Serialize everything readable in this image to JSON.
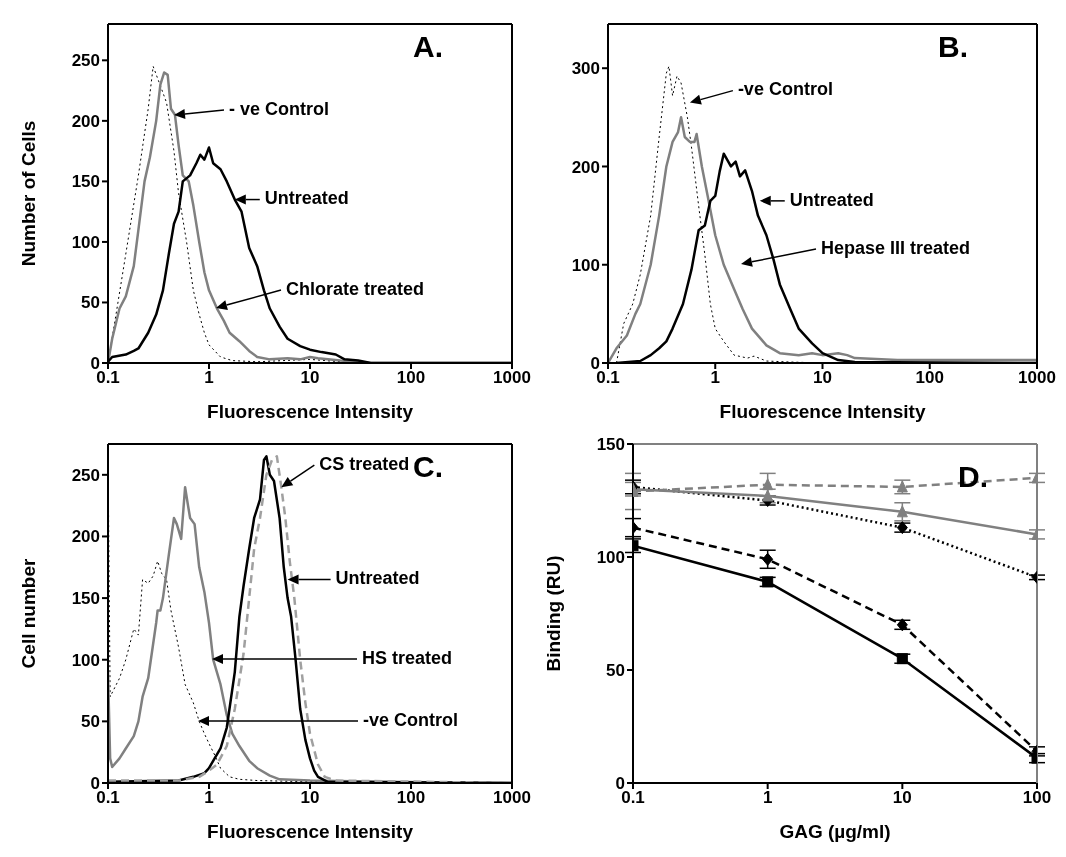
{
  "chart_data": [
    {
      "type": "line",
      "xlabel": "Fluorescence Intensity",
      "ylabel": "Number of Cells",
      "log": "x",
      "xlim": [
        0.1,
        1000
      ],
      "xticks": [
        0.1,
        1,
        10,
        100,
        1000
      ],
      "ylim": [
        0,
        280
      ],
      "yticks": [
        0,
        50,
        100,
        150,
        200,
        250
      ],
      "series": [
        {
          "color": "#000000",
          "line_style": "dotted",
          "x": [
            0.1,
            0.12,
            0.15,
            0.2,
            0.25,
            0.28,
            0.32,
            0.38,
            0.45,
            0.5,
            0.6,
            0.7,
            0.8,
            0.9,
            1.0,
            1.3,
            1.7,
            3,
            10,
            20,
            40,
            1000
          ],
          "values": [
            0,
            40,
            90,
            155,
            210,
            245,
            232,
            215,
            175,
            140,
            100,
            60,
            40,
            25,
            15,
            5,
            2,
            1,
            3,
            1,
            0,
            0
          ]
        },
        {
          "color": "#808080",
          "line_style": "solid",
          "x": [
            0.1,
            0.11,
            0.13,
            0.15,
            0.18,
            0.2,
            0.23,
            0.26,
            0.3,
            0.33,
            0.36,
            0.39,
            0.42,
            0.46,
            0.5,
            0.55,
            0.63,
            0.7,
            0.8,
            0.9,
            1.0,
            1.2,
            1.4,
            1.6,
            2,
            2.5,
            3,
            4,
            6,
            8,
            10,
            12,
            20,
            40,
            1000
          ],
          "values": [
            0,
            20,
            45,
            55,
            80,
            110,
            150,
            170,
            200,
            230,
            240,
            238,
            210,
            205,
            180,
            155,
            150,
            130,
            100,
            75,
            60,
            45,
            35,
            25,
            18,
            10,
            5,
            3,
            4,
            3,
            5,
            4,
            2,
            0,
            0
          ]
        },
        {
          "color": "#000000",
          "line_style": "solid",
          "x": [
            0.1,
            0.11,
            0.15,
            0.18,
            0.2,
            0.25,
            0.3,
            0.35,
            0.4,
            0.45,
            0.5,
            0.55,
            0.65,
            0.75,
            0.82,
            0.9,
            1.0,
            1.1,
            1.3,
            1.5,
            1.8,
            2.1,
            2.5,
            3.0,
            3.5,
            4,
            5,
            6,
            8,
            10,
            13,
            18,
            22,
            30,
            40,
            1000
          ],
          "values": [
            1,
            5,
            7,
            10,
            12,
            25,
            40,
            60,
            90,
            115,
            125,
            150,
            155,
            165,
            172,
            168,
            178,
            165,
            160,
            150,
            135,
            125,
            95,
            80,
            60,
            45,
            30,
            20,
            14,
            11,
            9,
            7,
            3,
            2,
            0,
            0
          ]
        }
      ],
      "annotations": [
        "- ve Control",
        {
          "text": "Untreated",
          "x": 1.8,
          "y": 135
        },
        "Chlorate treated",
        "A."
      ]
    },
    {
      "type": "line",
      "xlabel": "Fluorescence Intensity",
      "log": "x",
      "xlim": [
        0.1,
        1000
      ],
      "xticks": [
        0.1,
        1,
        10,
        100,
        1000
      ],
      "ylim": [
        0,
        345
      ],
      "yticks": [
        0,
        100,
        200,
        300
      ],
      "series": [
        {
          "color": "#000000",
          "line_style": "dotted",
          "x": [
            0.12,
            0.14,
            0.17,
            0.2,
            0.25,
            0.3,
            0.35,
            0.37,
            0.4,
            0.44,
            0.48,
            0.55,
            0.6,
            0.7,
            0.8,
            0.9,
            1.0,
            1.2,
            1.5,
            2,
            2.3,
            3,
            5,
            10,
            1000
          ],
          "values": [
            0,
            40,
            60,
            90,
            150,
            230,
            295,
            302,
            272,
            292,
            285,
            250,
            220,
            160,
            110,
            60,
            35,
            22,
            8,
            5,
            7,
            2,
            1,
            0,
            0
          ]
        },
        {
          "color": "#808080",
          "line_style": "solid",
          "x": [
            0.1,
            0.12,
            0.15,
            0.18,
            0.2,
            0.25,
            0.3,
            0.35,
            0.4,
            0.45,
            0.48,
            0.52,
            0.58,
            0.64,
            0.67,
            0.75,
            0.85,
            1.0,
            1.2,
            1.5,
            1.8,
            2.2,
            3,
            4,
            6,
            8,
            10,
            14,
            17,
            20,
            50,
            1000
          ],
          "values": [
            0,
            15,
            28,
            50,
            60,
            100,
            150,
            200,
            225,
            235,
            250,
            230,
            225,
            225,
            233,
            200,
            170,
            130,
            100,
            75,
            55,
            35,
            18,
            10,
            8,
            10,
            8,
            10,
            8,
            5,
            3,
            3
          ]
        },
        {
          "color": "#000000",
          "line_style": "solid",
          "x": [
            0.12,
            0.2,
            0.25,
            0.3,
            0.35,
            0.4,
            0.5,
            0.6,
            0.7,
            0.8,
            0.9,
            1.0,
            1.1,
            1.2,
            1.4,
            1.55,
            1.7,
            1.9,
            2.2,
            2.5,
            3,
            3.5,
            4,
            5,
            6,
            8,
            10,
            14,
            20,
            1000
          ],
          "values": [
            0,
            2,
            8,
            15,
            22,
            35,
            60,
            95,
            135,
            140,
            165,
            170,
            195,
            213,
            200,
            205,
            190,
            196,
            175,
            150,
            130,
            105,
            80,
            55,
            35,
            20,
            10,
            3,
            1,
            0
          ]
        }
      ],
      "annotations": [
        {
          "text": "-ve Control",
          "x": 0.58,
          "y": 265
        },
        {
          "text": "Untreated",
          "x": 2.6,
          "y": 165
        },
        "Hepase III treated",
        "B."
      ]
    },
    {
      "type": "line",
      "xlabel": "Fluorescence Intensity",
      "ylabel": "Cell number",
      "log": "x",
      "xlim": [
        0.1,
        1000
      ],
      "xticks": [
        0.1,
        1,
        10,
        100,
        1000
      ],
      "ylim": [
        0,
        275
      ],
      "yticks": [
        0,
        50,
        100,
        150,
        200,
        250
      ],
      "series": [
        {
          "color": "#000000",
          "line_style": "dotted",
          "x": [
            0.1,
            0.105,
            0.13,
            0.15,
            0.18,
            0.2,
            0.22,
            0.25,
            0.28,
            0.31,
            0.34,
            0.38,
            0.42,
            0.5,
            0.58,
            0.7,
            0.8,
            0.9,
            1.0,
            1.15,
            1.3,
            1.6,
            2,
            3,
            10,
            1000
          ],
          "values": [
            270,
            70,
            85,
            100,
            125,
            120,
            165,
            162,
            168,
            180,
            170,
            165,
            140,
            110,
            80,
            65,
            50,
            40,
            32,
            22,
            12,
            5,
            3,
            2,
            1,
            0
          ]
        },
        {
          "color": "#808080",
          "line_style": "solid",
          "x": [
            0.1,
            0.105,
            0.11,
            0.13,
            0.15,
            0.18,
            0.2,
            0.22,
            0.25,
            0.3,
            0.31,
            0.33,
            0.35,
            0.4,
            0.45,
            0.48,
            0.53,
            0.58,
            0.62,
            0.65,
            0.72,
            0.8,
            0.9,
            1.0,
            1.1,
            1.3,
            1.5,
            1.7,
            2,
            2.5,
            3,
            4,
            5,
            10,
            50,
            1000
          ],
          "values": [
            90,
            20,
            13,
            20,
            28,
            38,
            50,
            70,
            85,
            130,
            140,
            140,
            150,
            185,
            215,
            210,
            198,
            240,
            225,
            215,
            210,
            175,
            155,
            130,
            100,
            80,
            55,
            40,
            30,
            18,
            12,
            6,
            3,
            2,
            1,
            0
          ]
        },
        {
          "color": "#000000",
          "line_style": "solid",
          "x": [
            0.1,
            0.5,
            0.7,
            0.9,
            1.0,
            1.1,
            1.3,
            1.5,
            1.8,
            2,
            2.2,
            2.5,
            2.8,
            3.2,
            3.5,
            3.7,
            4,
            4.4,
            5,
            5.5,
            6,
            6.5,
            7.2,
            8,
            9,
            10,
            11,
            12,
            15,
            1000
          ],
          "values": [
            1,
            2,
            5,
            8,
            12,
            18,
            28,
            45,
            90,
            135,
            160,
            190,
            215,
            230,
            262,
            265,
            250,
            245,
            215,
            175,
            150,
            135,
            100,
            60,
            35,
            20,
            10,
            5,
            1,
            0
          ]
        },
        {
          "color": "#a0a0a0",
          "line_style": "dashed",
          "x": [
            0.1,
            0.5,
            0.8,
            1.0,
            1.2,
            1.5,
            1.8,
            2.2,
            2.5,
            2.8,
            3.2,
            3.7,
            4.2,
            4.7,
            5.2,
            5.7,
            6.3,
            7,
            8,
            9,
            10,
            12,
            14,
            18,
            1000
          ],
          "values": [
            2,
            2,
            5,
            10,
            15,
            30,
            60,
            105,
            150,
            190,
            215,
            250,
            262,
            265,
            240,
            215,
            180,
            150,
            100,
            65,
            40,
            15,
            5,
            2,
            0
          ]
        }
      ],
      "annotations": [
        {
          "text": "CS treated",
          "x": 5.2,
          "y": 240
        },
        {
          "text": "Untreated",
          "x": 6,
          "y": 165
        },
        "HS treated",
        "-ve Control",
        "C."
      ]
    },
    {
      "type": "line",
      "xlabel": "GAG (µg/ml)",
      "ylabel": "Binding (RU)",
      "log": "x",
      "xlim": [
        0.1,
        100
      ],
      "xticks": [
        0.1,
        1,
        10,
        100
      ],
      "ylim": [
        0,
        150
      ],
      "yticks": [
        0,
        50,
        100,
        150
      ],
      "x": [
        0.1,
        1,
        10,
        100
      ],
      "series": [
        {
          "color": "#000000",
          "line_style": "solid",
          "marker": "square",
          "values": [
            105,
            89,
            55,
            11
          ],
          "errors": [
            3,
            2,
            2,
            2
          ]
        },
        {
          "color": "#000000",
          "line_style": "dashed",
          "marker": "diamond",
          "values": [
            113,
            99,
            70,
            14
          ],
          "errors": [
            4,
            4,
            2,
            2
          ]
        },
        {
          "color": "#000000",
          "line_style": "dotted",
          "marker": "diamond",
          "values": [
            131,
            125,
            113,
            91
          ],
          "errors": [
            3,
            2,
            2,
            1
          ]
        },
        {
          "color": "#808080",
          "line_style": "solid",
          "marker": "triangle",
          "values": [
            130,
            127,
            120,
            110
          ],
          "errors": [
            3,
            3,
            4,
            2
          ]
        },
        {
          "color": "#808080",
          "line_style": "dashed",
          "marker": "triangle",
          "values": [
            129,
            132,
            131,
            135
          ],
          "errors": [
            8,
            5,
            3,
            2
          ]
        }
      ],
      "annotations": [
        "D."
      ]
    }
  ]
}
